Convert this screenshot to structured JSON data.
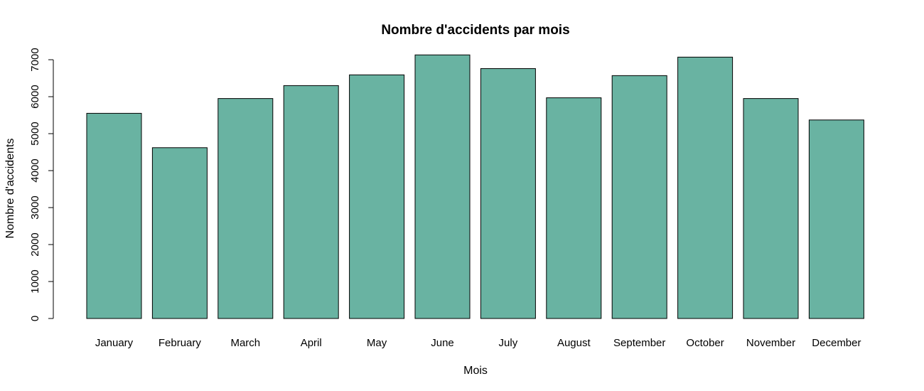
{
  "chart_data": {
    "type": "bar",
    "title": "Nombre d'accidents par mois",
    "xlabel": "Mois",
    "ylabel": "Nombre d'accidents",
    "categories": [
      "January",
      "February",
      "March",
      "April",
      "May",
      "June",
      "July",
      "August",
      "September",
      "October",
      "November",
      "December"
    ],
    "values": [
      5550,
      4620,
      5950,
      6300,
      6590,
      7130,
      6760,
      5970,
      6570,
      7070,
      5950,
      5370
    ],
    "ylim": [
      0,
      7000
    ],
    "yticks": [
      "0",
      "1000",
      "2000",
      "3000",
      "4000",
      "5000",
      "6000",
      "7000"
    ],
    "grid": false,
    "bar_color": "#69b3a2",
    "edge_color": "#000000"
  }
}
